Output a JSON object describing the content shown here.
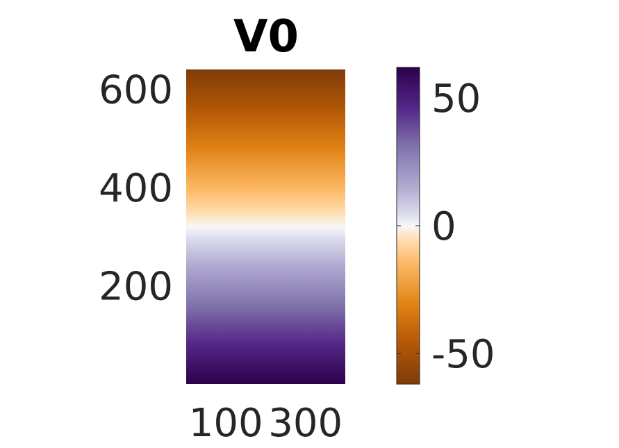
{
  "chart_data": {
    "type": "heatmap",
    "title": "V0",
    "xlabel": "",
    "ylabel": "",
    "xlim": [
      0,
      400
    ],
    "ylim": [
      0,
      640
    ],
    "x_ticks": [
      100,
      300
    ],
    "y_ticks": [
      200,
      400,
      600
    ],
    "values_description_free": true,
    "gradient_direction": "vertical",
    "value_at_ymin": 62,
    "value_at_ymax": -62,
    "colormap": {
      "name": "PuOr",
      "stops": [
        {
          "value": -62,
          "color": "#7f3b08"
        },
        {
          "value": -46,
          "color": "#b35806"
        },
        {
          "value": -31,
          "color": "#e08214"
        },
        {
          "value": -15,
          "color": "#fdb863"
        },
        {
          "value": -5,
          "color": "#fee0b6"
        },
        {
          "value": 0,
          "color": "#f7f7f7"
        },
        {
          "value": 5,
          "color": "#d8daeb"
        },
        {
          "value": 15,
          "color": "#b2abd2"
        },
        {
          "value": 31,
          "color": "#8073ac"
        },
        {
          "value": 46,
          "color": "#542788"
        },
        {
          "value": 62,
          "color": "#2d004b"
        }
      ]
    },
    "colorbar": {
      "clim": [
        -62,
        62
      ],
      "ticks": [
        -50,
        0,
        50
      ],
      "tick_labels": [
        "-50",
        "0",
        "50"
      ]
    }
  }
}
